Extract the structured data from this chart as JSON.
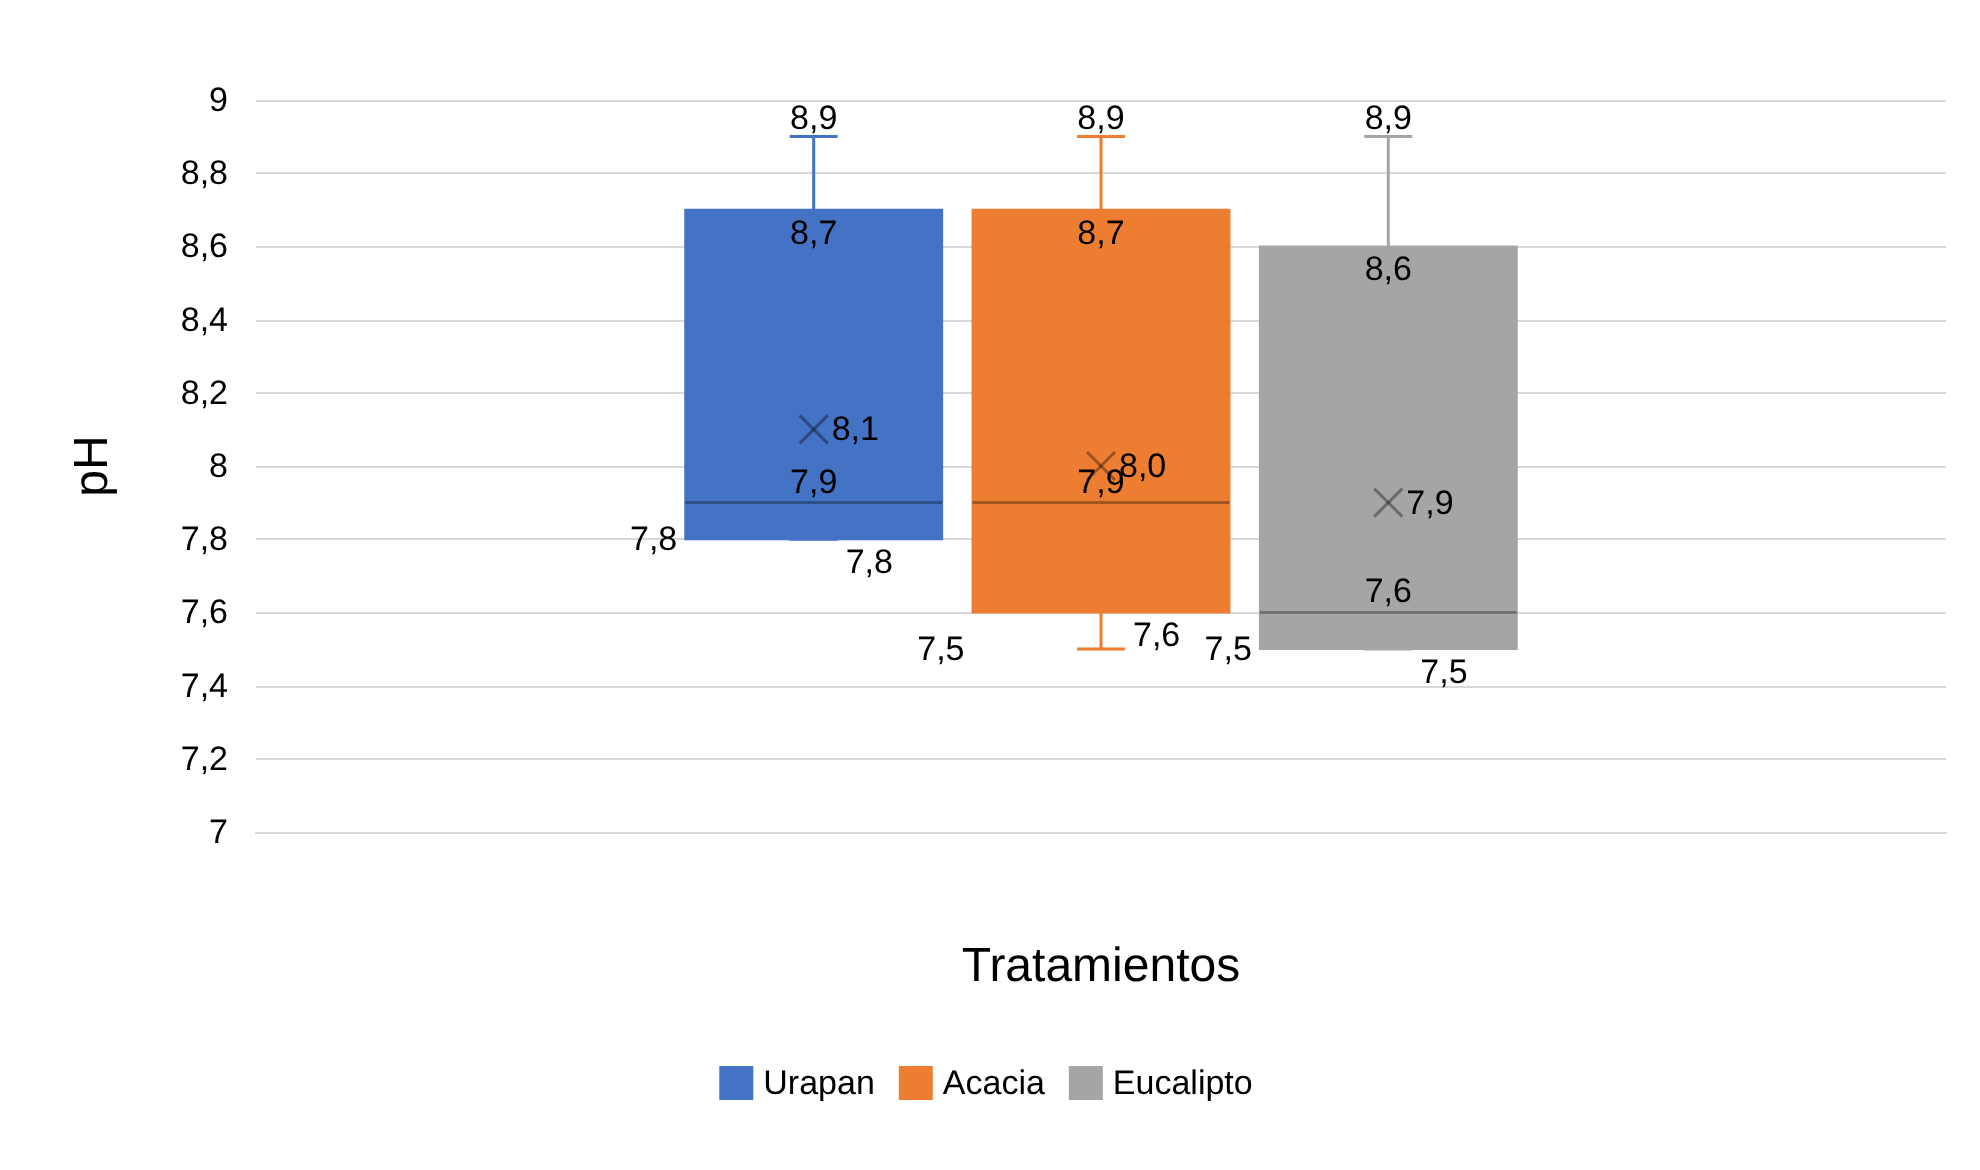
{
  "chart_data": {
    "type": "box",
    "xlabel": "Tratamientos",
    "ylabel": "pH",
    "categories": [
      null
    ],
    "series": [
      {
        "name": "Urapan",
        "color": "#4472c4",
        "boxes": [
          {
            "low": 7.8,
            "q1": 7.8,
            "median": 7.9,
            "q3": 8.7,
            "high": 8.9,
            "mean": 8.1
          }
        ],
        "value_labels": [
          [
            "8,9",
            "8,7",
            "7,9",
            "7,8",
            "7,8",
            "8,1"
          ]
        ]
      },
      {
        "name": "Acacia",
        "color": "#ed7d31",
        "boxes": [
          {
            "low": 7.5,
            "q1": 7.6,
            "median": 7.9,
            "q3": 8.7,
            "high": 8.9,
            "mean": 8.0
          }
        ],
        "value_labels": [
          [
            "8,9",
            "8,7",
            "7,9",
            "7,6",
            "7,5",
            "8,0"
          ]
        ]
      },
      {
        "name": "Eucalipto",
        "color": "#a5a5a5",
        "boxes": [
          {
            "low": 7.5,
            "q1": 7.5,
            "median": 7.6,
            "q3": 8.6,
            "high": 8.9,
            "mean": 7.9
          }
        ],
        "value_labels": [
          [
            "8,9",
            "8,6",
            "7,6",
            "7,5",
            "7,5",
            "7,9"
          ]
        ]
      }
    ],
    "ylim": [
      7,
      9
    ],
    "yticks": [
      {
        "value": 7,
        "label": "7"
      },
      {
        "value": 7.2,
        "label": "7,2"
      },
      {
        "value": 7.4,
        "label": "7,4"
      },
      {
        "value": 7.6,
        "label": "7,6"
      },
      {
        "value": 7.8,
        "label": "7,8"
      },
      {
        "value": 8,
        "label": "8"
      },
      {
        "value": 8.2,
        "label": "8,2"
      },
      {
        "value": 8.4,
        "label": "8,4"
      },
      {
        "value": 8.6,
        "label": "8,6"
      },
      {
        "value": 8.8,
        "label": "8,8"
      },
      {
        "value": 9,
        "label": "9"
      }
    ],
    "grid": "y",
    "legend": "bottom"
  }
}
